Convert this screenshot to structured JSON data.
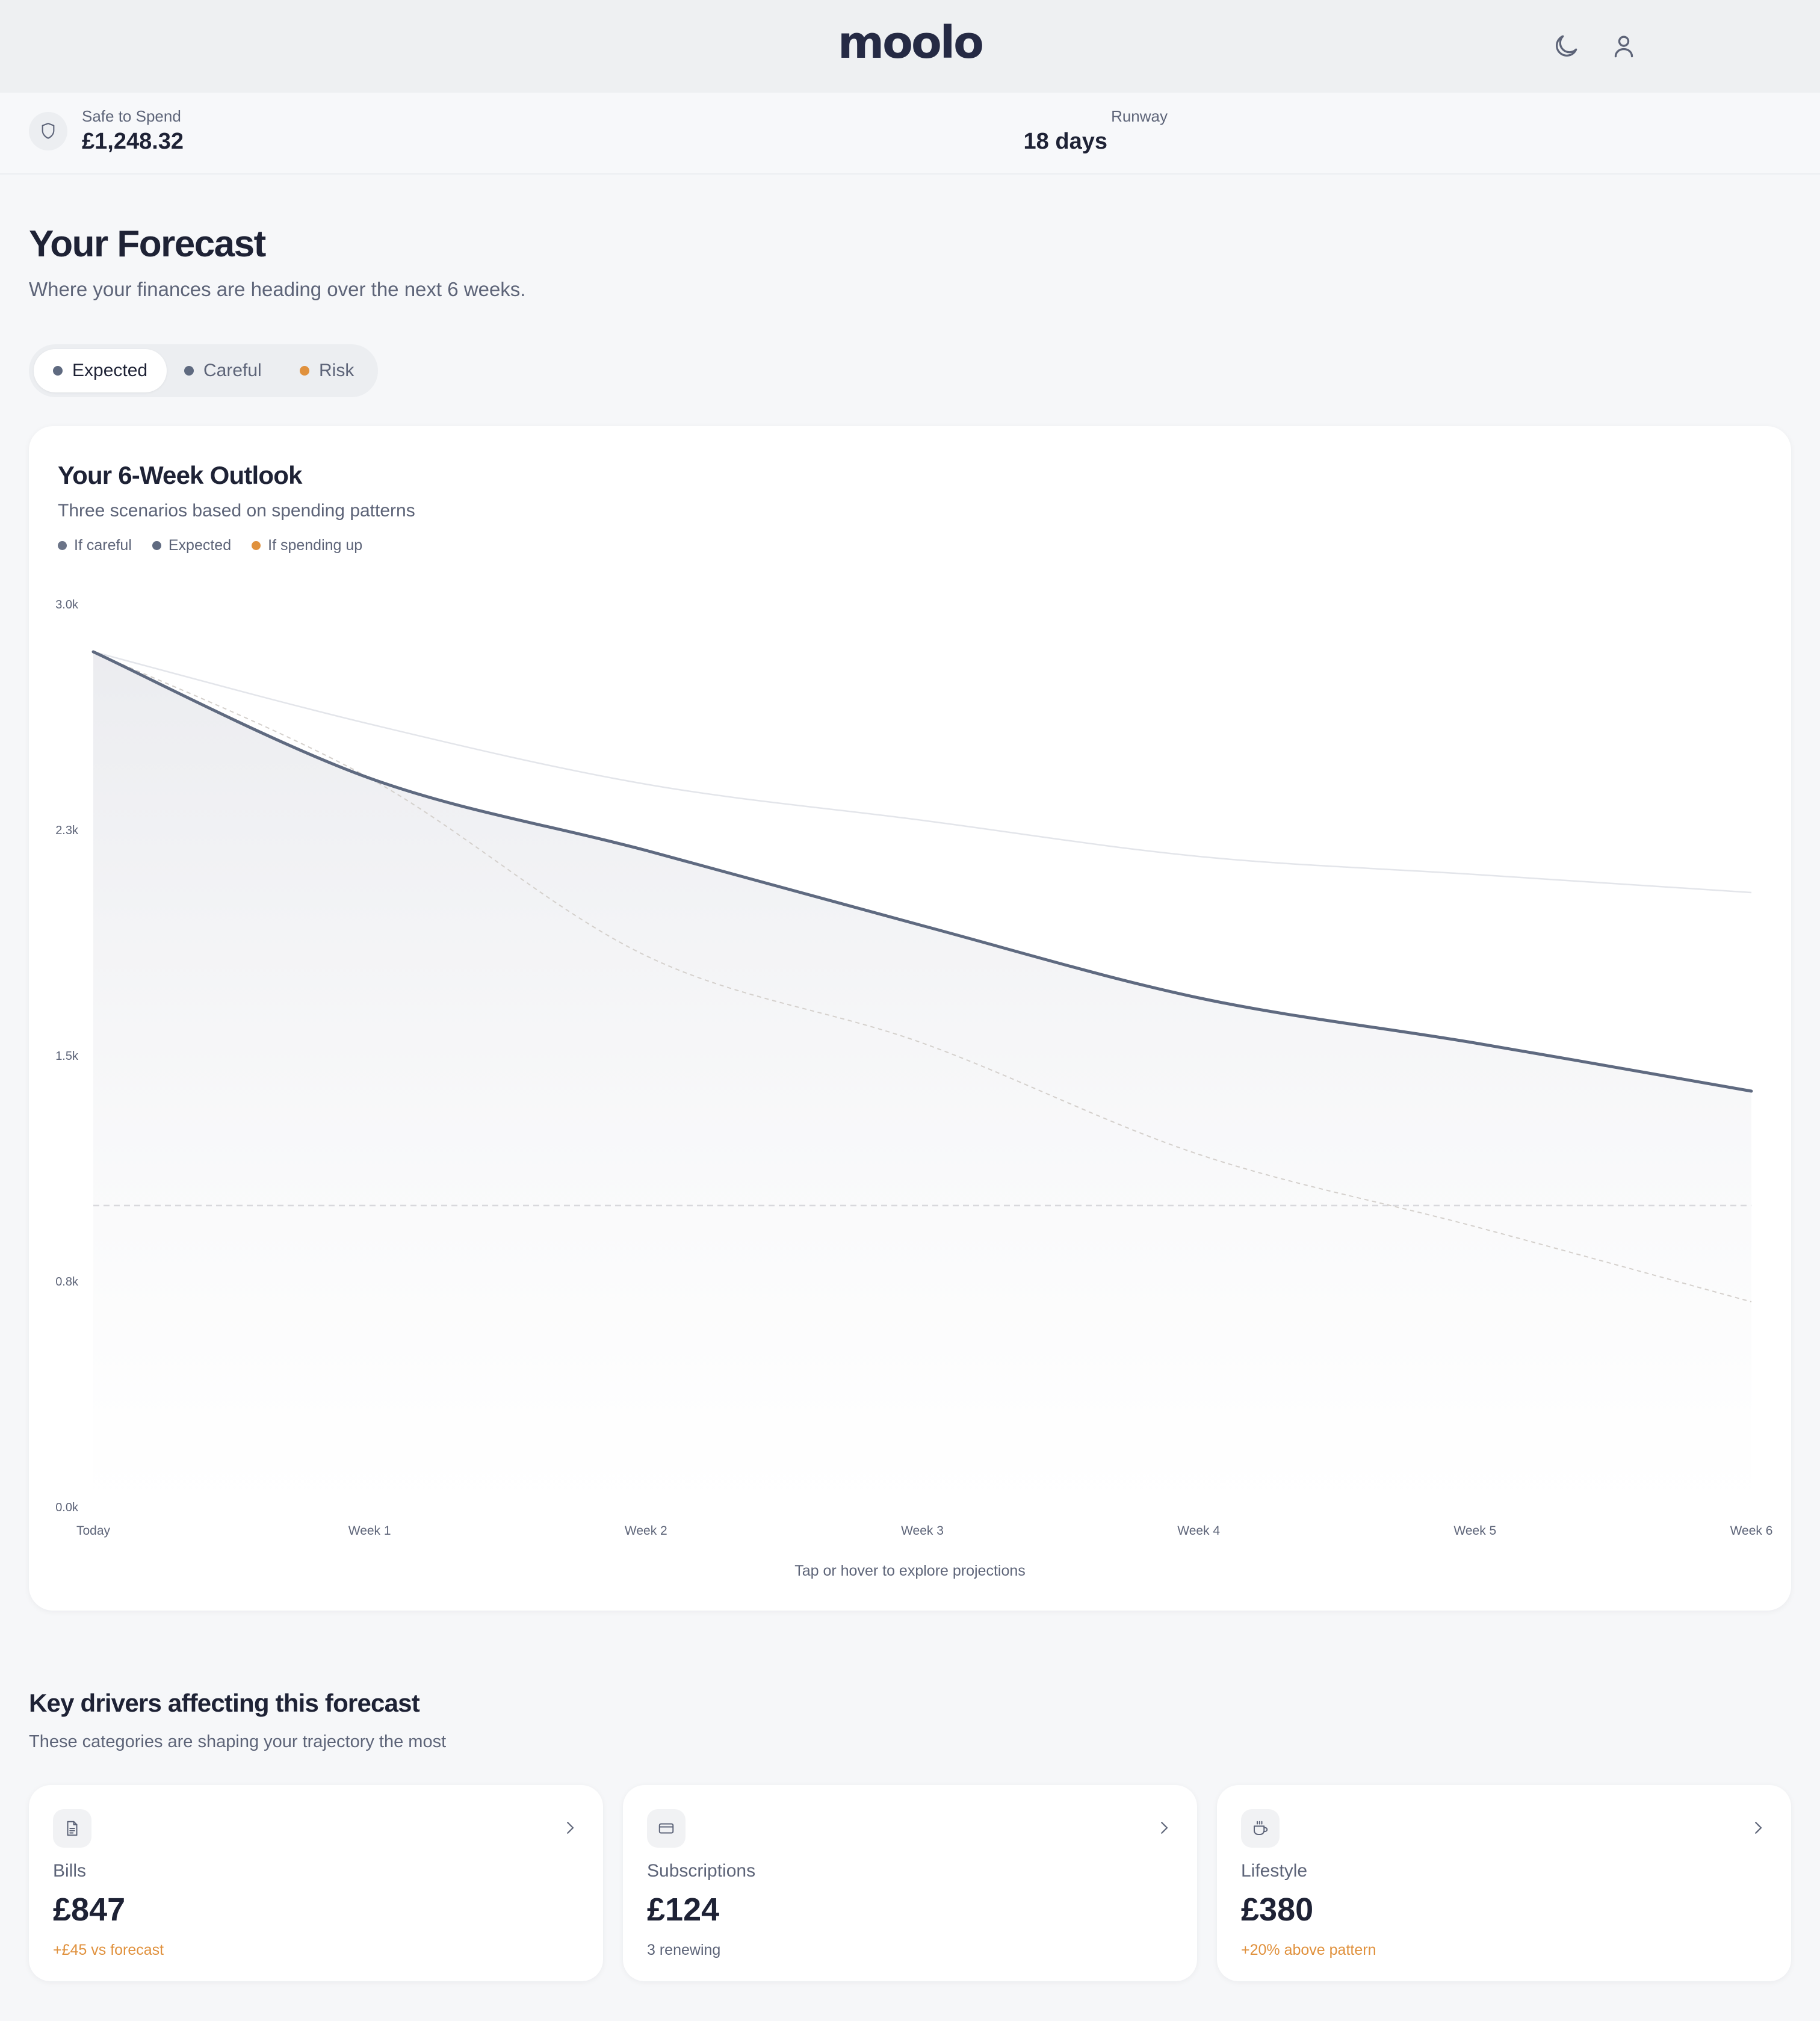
{
  "header": {
    "logo": "moolo",
    "icons": [
      "moon-icon",
      "user-icon"
    ]
  },
  "summary": {
    "safe_label": "Safe to Spend",
    "safe_value": "£1,248.32",
    "runway_label": "Runway",
    "runway_value": "18 days"
  },
  "page": {
    "title": "Your Forecast",
    "subtitle": "Where your finances are heading over the next 6 weeks."
  },
  "scenario_tabs": [
    {
      "label": "Expected",
      "active": true,
      "color": "#5f6a80"
    },
    {
      "label": "Careful",
      "active": false,
      "color": "#5f6a80"
    },
    {
      "label": "Risk",
      "active": false,
      "color": "#e0913d"
    }
  ],
  "chart_card": {
    "title": "Your 6-Week Outlook",
    "subtitle": "Three scenarios based on spending patterns",
    "legend": [
      {
        "label": "If careful",
        "color": "#6b7488"
      },
      {
        "label": "Expected",
        "color": "#5f6a80"
      },
      {
        "label": "If spending up",
        "color": "#e0913d"
      }
    ],
    "hint": "Tap or hover to explore projections"
  },
  "chart_data": {
    "type": "line",
    "x": [
      "Today",
      "Week 1",
      "Week 2",
      "Week 3",
      "Week 4",
      "Week 5",
      "Week 6"
    ],
    "y_ticks": [
      "0.0k",
      "0.8k",
      "1.5k",
      "2.3k",
      "3.0k"
    ],
    "ylim": [
      0,
      3000
    ],
    "threshold": 1000,
    "series": [
      {
        "name": "If careful",
        "color": "#e3e5ea",
        "values": [
          2840,
          2600,
          2400,
          2280,
          2160,
          2100,
          2040
        ]
      },
      {
        "name": "Expected",
        "color": "#5f6a80",
        "values": [
          2840,
          2420,
          2180,
          1930,
          1690,
          1540,
          1380
        ]
      },
      {
        "name": "If spending up",
        "color": "#d4d0cc",
        "values": [
          2840,
          2420,
          1830,
          1540,
          1170,
          930,
          680
        ]
      }
    ]
  },
  "drivers": {
    "title": "Key drivers affecting this forecast",
    "subtitle": "These categories are shaping your trajectory the most",
    "cards": [
      {
        "icon": "document-icon",
        "label": "Bills",
        "value": "£847",
        "note": "+£45 vs forecast",
        "note_color": "#e0913d"
      },
      {
        "icon": "card-icon",
        "label": "Subscriptions",
        "value": "£124",
        "note": "3 renewing",
        "note_color": "#5d6478"
      },
      {
        "icon": "coffee-icon",
        "label": "Lifestyle",
        "value": "£380",
        "note": "+20% above pattern",
        "note_color": "#e0913d"
      }
    ]
  }
}
